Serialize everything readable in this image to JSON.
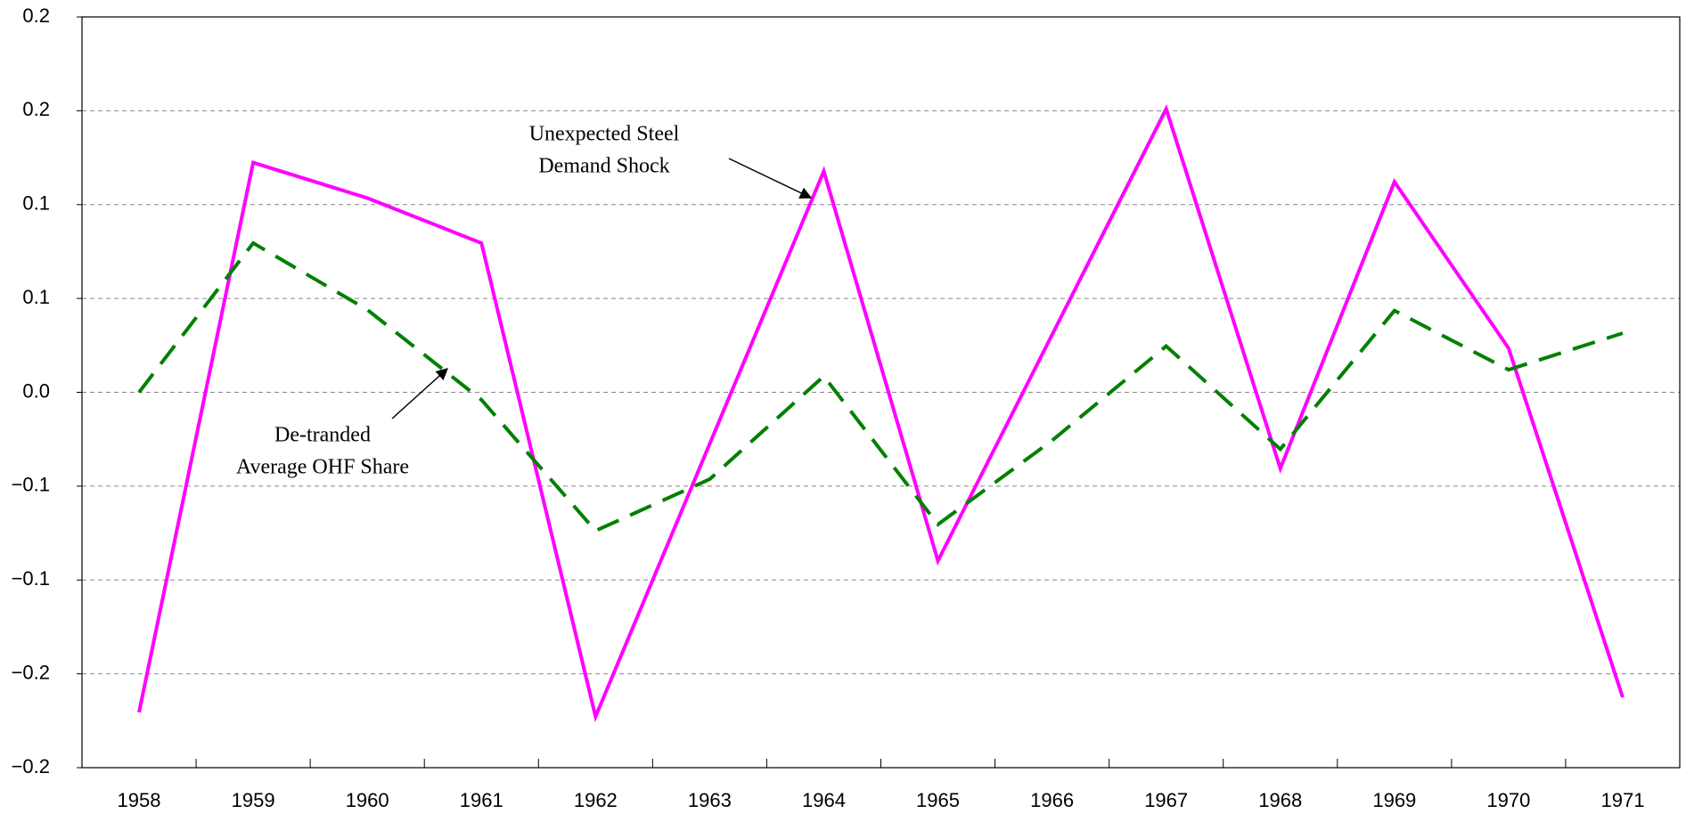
{
  "chart_data": {
    "type": "line",
    "categories": [
      "1958",
      "1959",
      "1960",
      "1961",
      "1962",
      "1963",
      "1964",
      "1965",
      "1966",
      "1967",
      "1968",
      "1969",
      "1970",
      "1971"
    ],
    "series": [
      {
        "name": "Unexpected Steel Demand Shock",
        "color": "#ff00ff",
        "dash": "solid",
        "values": [
          -0.1705,
          0.1224,
          0.1035,
          0.0795,
          -0.1728,
          -0.0275,
          0.1178,
          -0.0898,
          0.0306,
          0.151,
          -0.0406,
          0.1121,
          0.0235,
          -0.1625
        ]
      },
      {
        "name": "De-tranded Average OHF Share",
        "color": "#008000",
        "dash": "dashed",
        "values": [
          0,
          0.0795,
          0.044,
          -0.004,
          -0.0738,
          -0.0463,
          0.0086,
          -0.0704,
          -0.0257,
          0.0246,
          -0.0303,
          0.0435,
          0.012,
          0.0315
        ]
      }
    ],
    "annotations": [
      {
        "lines": [
          "Unexpected Steel",
          "Demand Shock"
        ],
        "series": 0
      },
      {
        "lines": [
          "De-tranded",
          "Average OHF Share"
        ],
        "series": 1
      }
    ],
    "ylim": [
      -0.2,
      0.2
    ],
    "yticks": [
      {
        "value": -0.2,
        "label": "−0.2"
      },
      {
        "value": -0.15,
        "label": "−0.2"
      },
      {
        "value": -0.1,
        "label": "−0.1"
      },
      {
        "value": -0.05,
        "label": "−0.1"
      },
      {
        "value": 0,
        "label": "0.0"
      },
      {
        "value": 0.05,
        "label": "0.1"
      },
      0.1,
      {
        "value": 0.15,
        "label": "0.2"
      },
      0.2
    ],
    "grid": true
  }
}
